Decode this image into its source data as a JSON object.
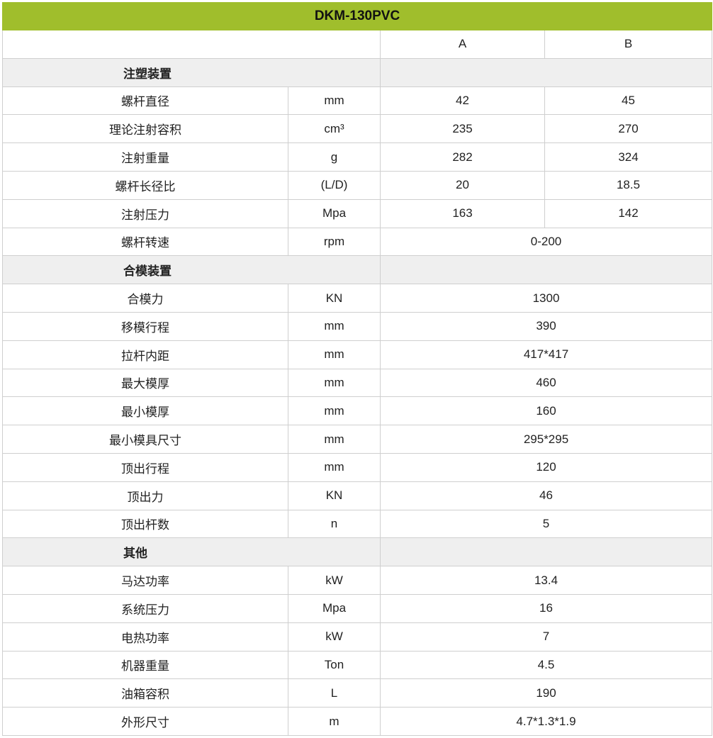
{
  "title": "DKM-130PVC",
  "columns": {
    "a": "A",
    "b": "B"
  },
  "colors": {
    "header_bg": "#a0be2c",
    "section_bg": "#efefef"
  },
  "sections": [
    {
      "name": "注塑装置",
      "rows": [
        {
          "label": "螺杆直径",
          "unit": "mm",
          "a": "42",
          "b": "45"
        },
        {
          "label": "理论注射容积",
          "unit": "cm³",
          "a": "235",
          "b": "270"
        },
        {
          "label": "注射重量",
          "unit": "g",
          "a": "282",
          "b": "324"
        },
        {
          "label": "螺杆长径比",
          "unit": "(L/D)",
          "a": "20",
          "b": "18.5"
        },
        {
          "label": "注射压力",
          "unit": "Mpa",
          "a": "163",
          "b": "142"
        },
        {
          "label": "螺杆转速",
          "unit": "rpm",
          "value": "0-200"
        }
      ]
    },
    {
      "name": "合模装置",
      "rows": [
        {
          "label": "合模力",
          "unit": "KN",
          "value": "1300"
        },
        {
          "label": "移模行程",
          "unit": "mm",
          "value": "390"
        },
        {
          "label": "拉杆内距",
          "unit": "mm",
          "value": "417*417"
        },
        {
          "label": "最大模厚",
          "unit": "mm",
          "value": "460"
        },
        {
          "label": "最小模厚",
          "unit": "mm",
          "value": "160"
        },
        {
          "label": "最小模具尺寸",
          "unit": "mm",
          "value": "295*295"
        },
        {
          "label": "顶出行程",
          "unit": "mm",
          "value": "120"
        },
        {
          "label": "顶出力",
          "unit": "KN",
          "value": "46"
        },
        {
          "label": "顶出杆数",
          "unit": "n",
          "value": "5"
        }
      ]
    },
    {
      "name": "其他",
      "rows": [
        {
          "label": "马达功率",
          "unit": "kW",
          "value": "13.4"
        },
        {
          "label": "系统压力",
          "unit": "Mpa",
          "value": "16"
        },
        {
          "label": "电热功率",
          "unit": "kW",
          "value": "7"
        },
        {
          "label": "机器重量",
          "unit": "Ton",
          "value": "4.5"
        },
        {
          "label": "油箱容积",
          "unit": "L",
          "value": "190"
        },
        {
          "label": "外形尺寸",
          "unit": "m",
          "value": "4.7*1.3*1.9"
        }
      ]
    }
  ]
}
